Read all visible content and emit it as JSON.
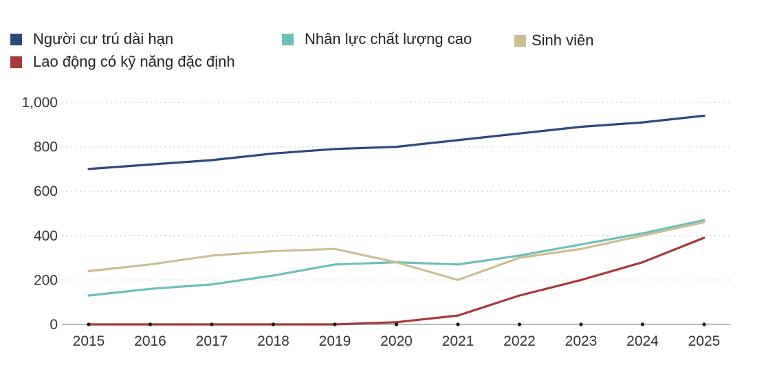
{
  "chart_data": {
    "type": "line",
    "title": "",
    "xlabel": "",
    "ylabel": "",
    "x": [
      2015,
      2016,
      2017,
      2018,
      2019,
      2020,
      2021,
      2022,
      2023,
      2024,
      2025
    ],
    "x_tick_labels": [
      "2015",
      "2016",
      "2017",
      "2018",
      "2019",
      "2020",
      "2021",
      "2022",
      "2023",
      "2024",
      "2025"
    ],
    "ylim": [
      0,
      1000
    ],
    "y_ticks": [
      0,
      200,
      400,
      600,
      800,
      1000
    ],
    "y_tick_labels": [
      "0",
      "200",
      "400",
      "600",
      "800",
      "1,000"
    ],
    "grid": "horizontal dotted",
    "legend_position": "top",
    "series": [
      {
        "name": "Người cư trú dài hạn",
        "color": "#2b4a7e",
        "values": [
          700,
          720,
          740,
          770,
          790,
          800,
          830,
          860,
          890,
          910,
          940
        ]
      },
      {
        "name": "Nhân lực chất lượng cao",
        "color": "#6cc0ba",
        "values": [
          130,
          160,
          180,
          220,
          270,
          280,
          270,
          310,
          360,
          410,
          470
        ]
      },
      {
        "name": "Sinh viên",
        "color": "#cbbf92",
        "values": [
          240,
          270,
          310,
          330,
          340,
          280,
          200,
          300,
          340,
          400,
          460
        ]
      },
      {
        "name": "Lao động có kỹ năng đặc định",
        "color": "#a8383a",
        "values": [
          0,
          0,
          0,
          0,
          0,
          10,
          40,
          130,
          200,
          280,
          390
        ]
      }
    ]
  }
}
